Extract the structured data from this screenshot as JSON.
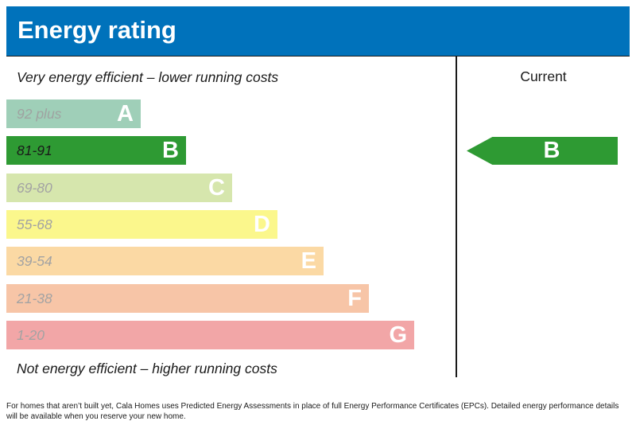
{
  "header": {
    "title": "Energy rating"
  },
  "captions": {
    "top": "Very energy efficient – lower running costs",
    "bottom": "Not energy efficient – higher running costs"
  },
  "columns": {
    "current_label": "Current"
  },
  "chart_data": {
    "type": "bar",
    "title": "Energy rating",
    "categories": [
      "A",
      "B",
      "C",
      "D",
      "E",
      "F",
      "G"
    ],
    "ranges": [
      "92 plus",
      "81-91",
      "69-80",
      "55-68",
      "39-54",
      "21-38",
      "1-20"
    ],
    "colors": [
      "#9fcfb8",
      "#2e9a33",
      "#d6e6ad",
      "#fbf78c",
      "#fbd9a4",
      "#f7c5a7",
      "#f2a6a7"
    ],
    "range_text_colors": [
      "#9fa3a1",
      "#1a1a1a",
      "#a3a3a3",
      "#a3a3a3",
      "#a3a3a3",
      "#a3a3a3",
      "#a3a3a3"
    ],
    "current": {
      "rating": "B",
      "color": "#2e9a33"
    }
  },
  "footnote": "For homes that aren’t built yet, Cala Homes uses Predicted Energy Assessments in place of full Energy Performance Certificates (EPCs). Detailed energy performance details will be available when you reserve your new home."
}
